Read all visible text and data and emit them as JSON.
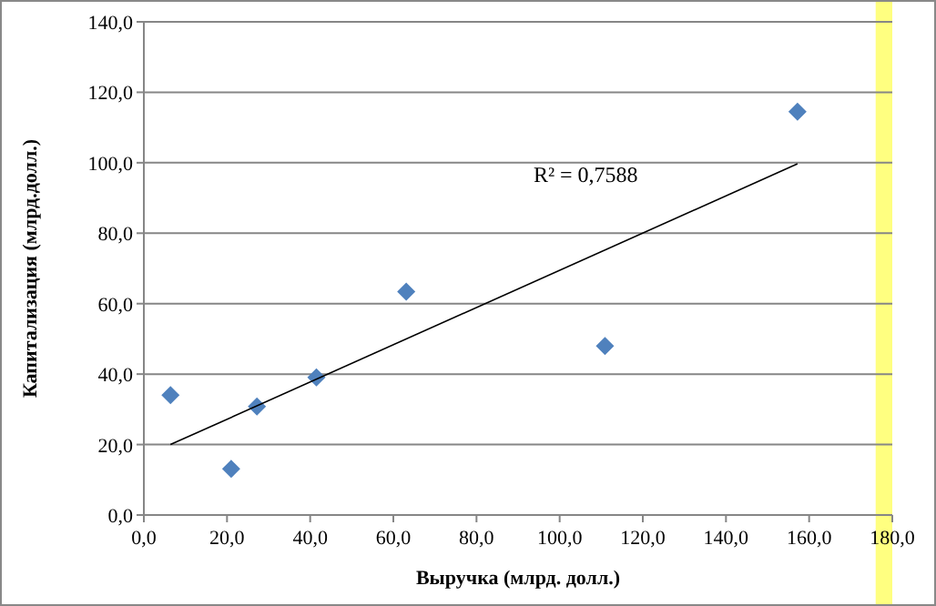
{
  "chart_data": {
    "type": "scatter",
    "xlabel": "Выручка (млрд. долл.)",
    "ylabel": "Капитализация (млрд.долл.)",
    "xlim": [
      0,
      180
    ],
    "ylim": [
      0,
      140
    ],
    "xticks": [
      {
        "value": 0,
        "label": "0,0"
      },
      {
        "value": 20,
        "label": "20,0"
      },
      {
        "value": 40,
        "label": "40,0"
      },
      {
        "value": 60,
        "label": "60,0"
      },
      {
        "value": 80,
        "label": "80,0"
      },
      {
        "value": 100,
        "label": "100,0"
      },
      {
        "value": 120,
        "label": "120,0"
      },
      {
        "value": 140,
        "label": "140,0"
      },
      {
        "value": 160,
        "label": "160,0"
      },
      {
        "value": 180,
        "label": "180,0"
      }
    ],
    "yticks": [
      {
        "value": 0,
        "label": "0,0"
      },
      {
        "value": 20,
        "label": "20,0"
      },
      {
        "value": 40,
        "label": "40,0"
      },
      {
        "value": 60,
        "label": "60,0"
      },
      {
        "value": 80,
        "label": "80,0"
      },
      {
        "value": 100,
        "label": "100,0"
      },
      {
        "value": 120,
        "label": "120,0"
      },
      {
        "value": 140,
        "label": "140,0"
      }
    ],
    "grid": "y",
    "series": [
      {
        "marker": "diamond",
        "color": "#4f81bd",
        "x": [
          6.4,
          21.0,
          27.2,
          41.5,
          63.1,
          110.9,
          157.2
        ],
        "values": [
          34.0,
          13.1,
          30.8,
          39.1,
          63.4,
          48.0,
          114.5
        ]
      },
      {
        "type": "line",
        "color": "#000000",
        "x": [
          6.4,
          157.2
        ],
        "values": [
          20.0,
          99.7
        ]
      }
    ],
    "annotations": [
      "R² = 0,7588"
    ],
    "bands": [
      {
        "axis": "x",
        "from": 176,
        "to": 180,
        "color": "#ffff80"
      }
    ]
  }
}
